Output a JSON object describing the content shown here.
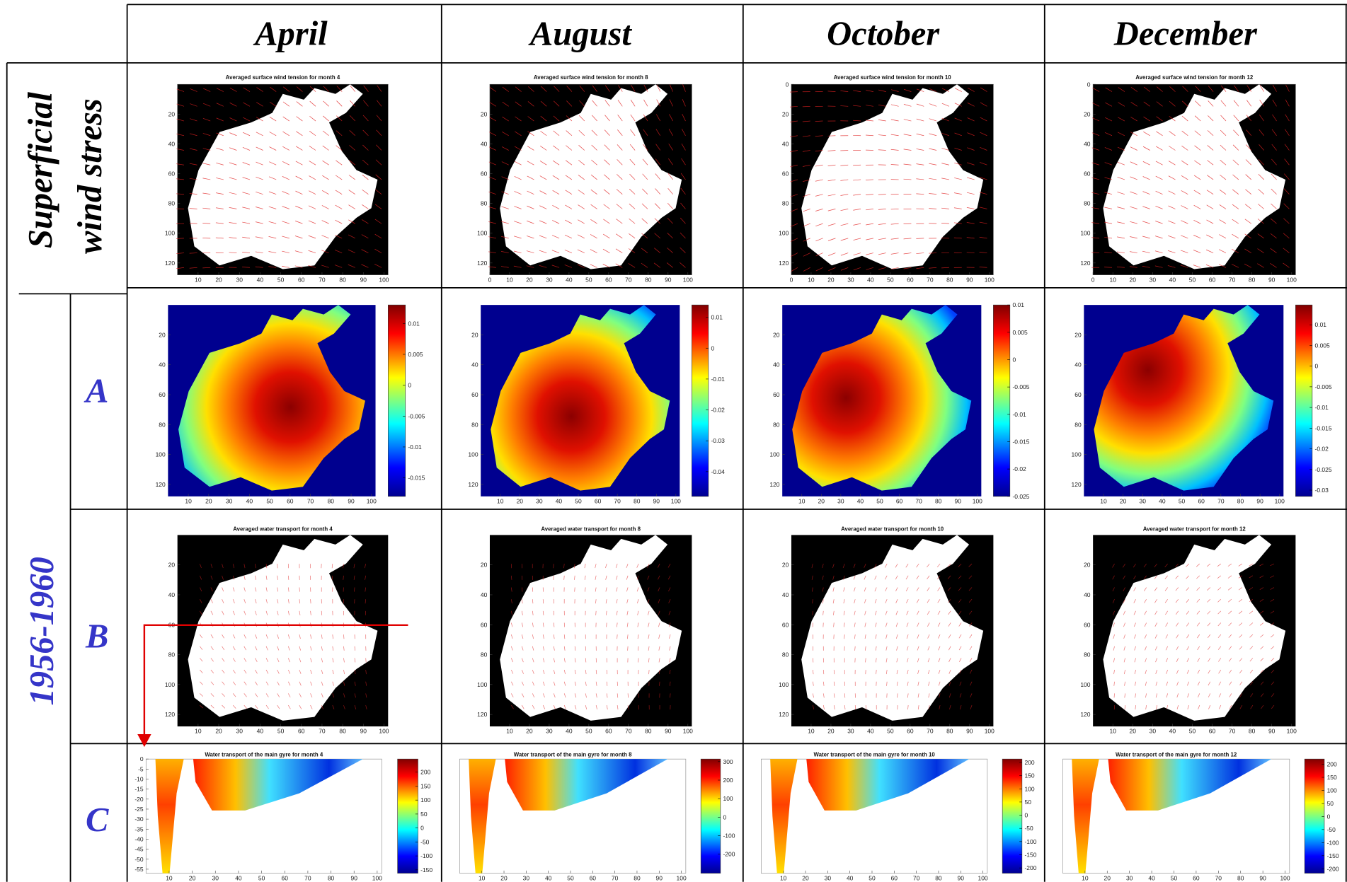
{
  "columns": [
    "April",
    "August",
    "October",
    "December"
  ],
  "row_headers": {
    "wind": [
      "Superficial",
      "wind stress"
    ],
    "period": "1956-1960",
    "sub": [
      "A",
      "B",
      "C"
    ]
  },
  "panels": [
    {
      "wind": {
        "title": "Averaged surface wind tension for month 4",
        "xlim": [
          0,
          102
        ],
        "ylim": [
          0,
          128
        ],
        "xticks": [
          10,
          20,
          30,
          40,
          50,
          60,
          70,
          80,
          90,
          100
        ],
        "yticks": [
          20,
          40,
          60,
          80,
          100,
          120
        ]
      },
      "A": {
        "xlim": [
          0,
          102
        ],
        "ylim": [
          0,
          128
        ],
        "xticks": [
          10,
          20,
          30,
          40,
          50,
          60,
          70,
          80,
          90,
          100
        ],
        "yticks": [
          20,
          40,
          60,
          80,
          100,
          120
        ],
        "clim": [
          0.013,
          -0.018
        ],
        "colorbar_ticks": [
          0.01,
          0.005,
          0,
          -0.005,
          -0.01,
          -0.015
        ]
      },
      "B": {
        "title": "Averaged water transport for month 4",
        "xlim": [
          0,
          102
        ],
        "ylim": [
          0,
          128
        ],
        "xticks": [
          10,
          20,
          30,
          40,
          50,
          60,
          70,
          80,
          90,
          100
        ],
        "yticks": [
          20,
          40,
          60,
          80,
          100,
          120
        ]
      },
      "C": {
        "title": "Water transport of the main gyre for month 4",
        "xlim": [
          0,
          102
        ],
        "ylim": [
          0,
          -57
        ],
        "xticks": [
          10,
          20,
          30,
          40,
          50,
          60,
          70,
          80,
          90,
          100
        ],
        "yticks": [
          0,
          -5,
          -10,
          -15,
          -20,
          -25,
          -30,
          -35,
          -40,
          -45,
          -50,
          -55
        ],
        "clim": [
          247,
          -162
        ],
        "colorbar_ticks": [
          200,
          150,
          100,
          50,
          0,
          -50,
          -100,
          -150
        ]
      }
    },
    {
      "wind": {
        "title": "Averaged surface wind tension for month 8",
        "xlim": [
          0,
          102
        ],
        "ylim": [
          0,
          128
        ],
        "xticks": [
          0,
          10,
          20,
          30,
          40,
          50,
          60,
          70,
          80,
          90,
          100
        ],
        "yticks": [
          20,
          40,
          60,
          80,
          100,
          120
        ]
      },
      "A": {
        "xlim": [
          0,
          102
        ],
        "ylim": [
          0,
          128
        ],
        "xticks": [
          10,
          20,
          30,
          40,
          50,
          60,
          70,
          80,
          90,
          100
        ],
        "yticks": [
          20,
          40,
          60,
          80,
          100,
          120
        ],
        "clim": [
          0.014,
          -0.048
        ],
        "colorbar_ticks": [
          0.01,
          0,
          -0.01,
          -0.02,
          -0.03,
          -0.04
        ]
      },
      "B": {
        "title": "Averaged water transport for month 8",
        "xlim": [
          0,
          102
        ],
        "ylim": [
          0,
          128
        ],
        "xticks": [
          10,
          20,
          30,
          40,
          50,
          60,
          70,
          80,
          90,
          100
        ],
        "yticks": [
          20,
          40,
          60,
          80,
          100,
          120
        ]
      },
      "C": {
        "title": "Water transport of the main gyre for month 8",
        "xlim": [
          0,
          102
        ],
        "ylim": [
          0,
          -57
        ],
        "xticks": [
          10,
          20,
          30,
          40,
          50,
          60,
          70,
          80,
          90,
          100
        ],
        "clim": [
          314,
          -303
        ],
        "colorbar_ticks": [
          300,
          200,
          100,
          0,
          -100,
          -200
        ]
      }
    },
    {
      "wind": {
        "title": "Averaged surface wind tension for month 10",
        "xlim": [
          0,
          102
        ],
        "ylim": [
          0,
          128
        ],
        "xticks": [
          0,
          10,
          20,
          30,
          40,
          50,
          60,
          70,
          80,
          90,
          100
        ],
        "yticks": [
          0,
          20,
          40,
          60,
          80,
          100,
          120
        ]
      },
      "A": {
        "xlim": [
          0,
          102
        ],
        "ylim": [
          0,
          128
        ],
        "xticks": [
          10,
          20,
          30,
          40,
          50,
          60,
          70,
          80,
          90,
          100
        ],
        "yticks": [
          20,
          40,
          60,
          80,
          100,
          120
        ],
        "clim": [
          0.01,
          -0.025
        ],
        "colorbar_ticks": [
          0.01,
          0.005,
          0,
          -0.005,
          -0.01,
          -0.015,
          -0.02,
          -0.025
        ]
      },
      "B": {
        "title": "Averaged water transport for month 10",
        "xlim": [
          0,
          102
        ],
        "ylim": [
          0,
          128
        ],
        "xticks": [
          10,
          20,
          30,
          40,
          50,
          60,
          70,
          80,
          90,
          100
        ],
        "yticks": [
          20,
          40,
          60,
          80,
          100,
          120
        ]
      },
      "C": {
        "title": "Water transport of the main gyre for month 10",
        "xlim": [
          0,
          102
        ],
        "ylim": [
          0,
          -57
        ],
        "xticks": [
          10,
          20,
          30,
          40,
          50,
          60,
          70,
          80,
          90,
          100
        ],
        "clim": [
          213,
          -220
        ],
        "colorbar_ticks": [
          200,
          150,
          100,
          50,
          0,
          -50,
          -100,
          -150,
          -200
        ]
      }
    },
    {
      "wind": {
        "title": "Averaged surface wind tension for month 12",
        "xlim": [
          0,
          102
        ],
        "ylim": [
          0,
          128
        ],
        "xticks": [
          0,
          10,
          20,
          30,
          40,
          50,
          60,
          70,
          80,
          90,
          100
        ],
        "yticks": [
          0,
          20,
          40,
          60,
          80,
          100,
          120
        ]
      },
      "A": {
        "xlim": [
          0,
          102
        ],
        "ylim": [
          0,
          128
        ],
        "xticks": [
          10,
          20,
          30,
          40,
          50,
          60,
          70,
          80,
          90,
          100
        ],
        "yticks": [
          20,
          40,
          60,
          80,
          100,
          120
        ],
        "clim": [
          0.0148,
          -0.0315
        ],
        "colorbar_ticks": [
          0.01,
          0.005,
          0,
          -0.005,
          -0.01,
          -0.015,
          -0.02,
          -0.025,
          -0.03
        ]
      },
      "B": {
        "title": "Averaged water transport for month 12",
        "xlim": [
          0,
          102
        ],
        "ylim": [
          0,
          128
        ],
        "xticks": [
          10,
          20,
          30,
          40,
          50,
          60,
          70,
          80,
          90,
          100
        ],
        "yticks": [
          20,
          40,
          60,
          80,
          100,
          120
        ]
      },
      "C": {
        "title": "Water transport of the main gyre for month 12",
        "xlim": [
          0,
          102
        ],
        "ylim": [
          0,
          -57
        ],
        "xticks": [
          10,
          20,
          30,
          40,
          50,
          60,
          70,
          80,
          90,
          100
        ],
        "clim": [
          220,
          -217
        ],
        "colorbar_ticks": [
          200,
          150,
          100,
          50,
          0,
          -50,
          -100,
          -150,
          -200
        ]
      }
    }
  ]
}
